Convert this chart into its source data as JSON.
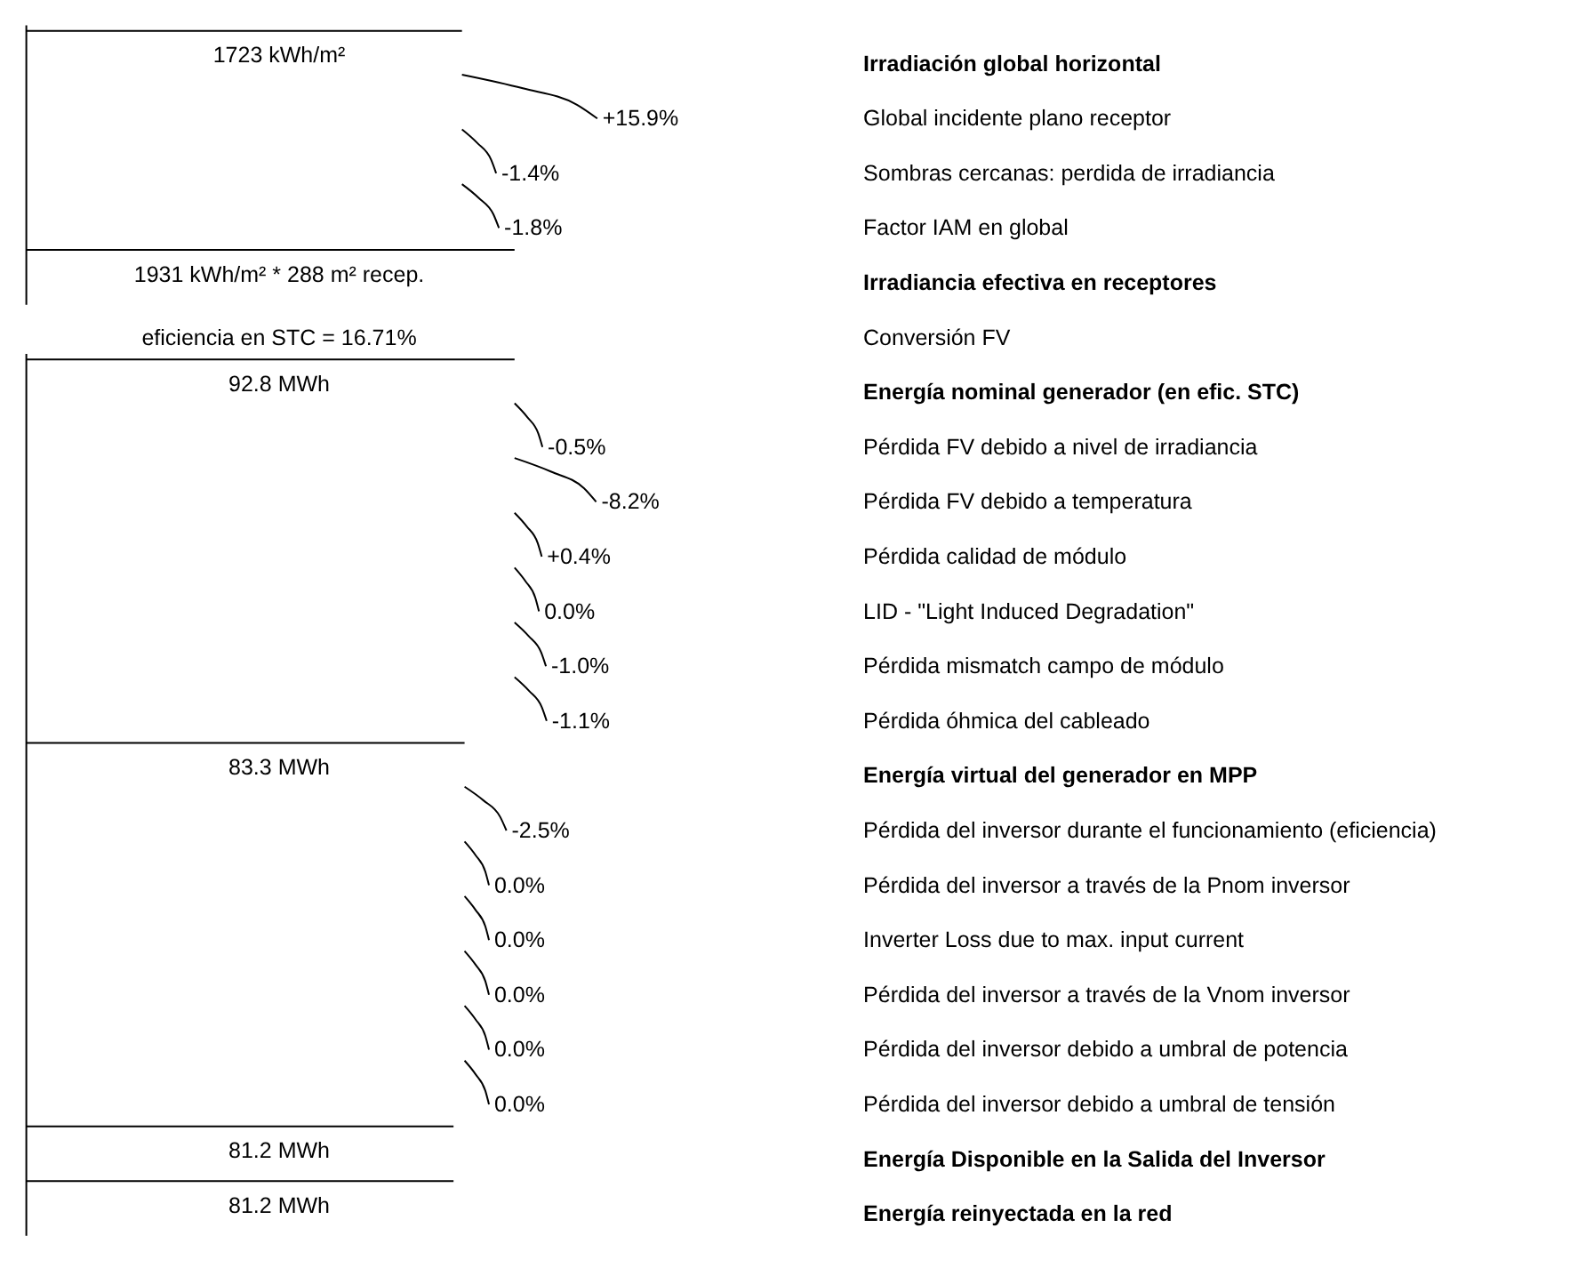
{
  "chart_data": {
    "type": "other",
    "categories": [
      "Irradiación global horizontal",
      "Global incidente plano receptor",
      "Sombras cercanas: perdida de irradiancia",
      "Factor IAM en global",
      "Irradiancia efectiva en receptores",
      "Conversión FV",
      "Energía nominal generador (en efic. STC)",
      "Pérdida FV debido a nivel de irradiancia",
      "Pérdida FV debido a temperatura",
      "Pérdida calidad de módulo",
      "LID - \"Light Induced Degradation\"",
      "Pérdida mismatch campo de módulo",
      "Pérdida óhmica del cableado",
      "Energía virtual del generador en MPP",
      "Pérdida del inversor durante el funcionamiento (eficiencia)",
      "Pérdida del inversor a través de la Pnom inversor",
      "Inverter Loss due to max. input current",
      "Pérdida del inversor a través de la Vnom inversor",
      "Pérdida del inversor debido a umbral de potencia",
      "Pérdida del inversor debido a umbral de tensión",
      "Energía Disponible en la Salida del Inversor",
      "Energía reinyectada en la red"
    ],
    "series": [
      {
        "color": "#000000",
        "values": [
          1723,
          null,
          null,
          null,
          1931,
          null,
          92.8,
          null,
          null,
          null,
          null,
          null,
          null,
          83.3,
          null,
          null,
          null,
          null,
          null,
          null,
          81.2,
          81.2
        ],
        "value_labels": [
          "1723 kWh/m²",
          null,
          null,
          null,
          "1931 kWh/m² * 288 m² recep.",
          null,
          "92.8 MWh",
          null,
          null,
          null,
          null,
          null,
          null,
          "83.3 MWh",
          null,
          null,
          null,
          null,
          null,
          null,
          "81.2 MWh",
          "81.2 MWh"
        ]
      },
      {
        "color": "#000000",
        "values": [
          null,
          15.9,
          -1.4,
          -1.8,
          null,
          null,
          null,
          -0.5,
          -8.2,
          0.4,
          0.0,
          -1.0,
          -1.1,
          null,
          -2.5,
          0.0,
          0.0,
          0.0,
          0.0,
          0.0,
          null,
          null
        ],
        "value_labels": [
          null,
          "+15.9%",
          "-1.4%",
          "-1.8%",
          null,
          null,
          null,
          "-0.5%",
          "-8.2%",
          "+0.4%",
          "0.0%",
          "-1.0%",
          "-1.1%",
          null,
          "-2.5%",
          "0.0%",
          "0.0%",
          "0.0%",
          "0.0%",
          "0.0%",
          null,
          null
        ]
      },
      {
        "color": "#000000",
        "values": [
          null,
          null,
          null,
          null,
          null,
          16.71,
          null,
          null,
          null,
          null,
          null,
          null,
          null,
          null,
          null,
          null,
          null,
          null,
          null,
          null,
          null,
          null
        ],
        "value_labels": [
          null,
          null,
          null,
          null,
          null,
          "eficiencia en STC = 16.71%",
          null,
          null,
          null,
          null,
          null,
          null,
          null,
          null,
          null,
          null,
          null,
          null,
          null,
          null,
          null,
          null
        ]
      }
    ]
  }
}
